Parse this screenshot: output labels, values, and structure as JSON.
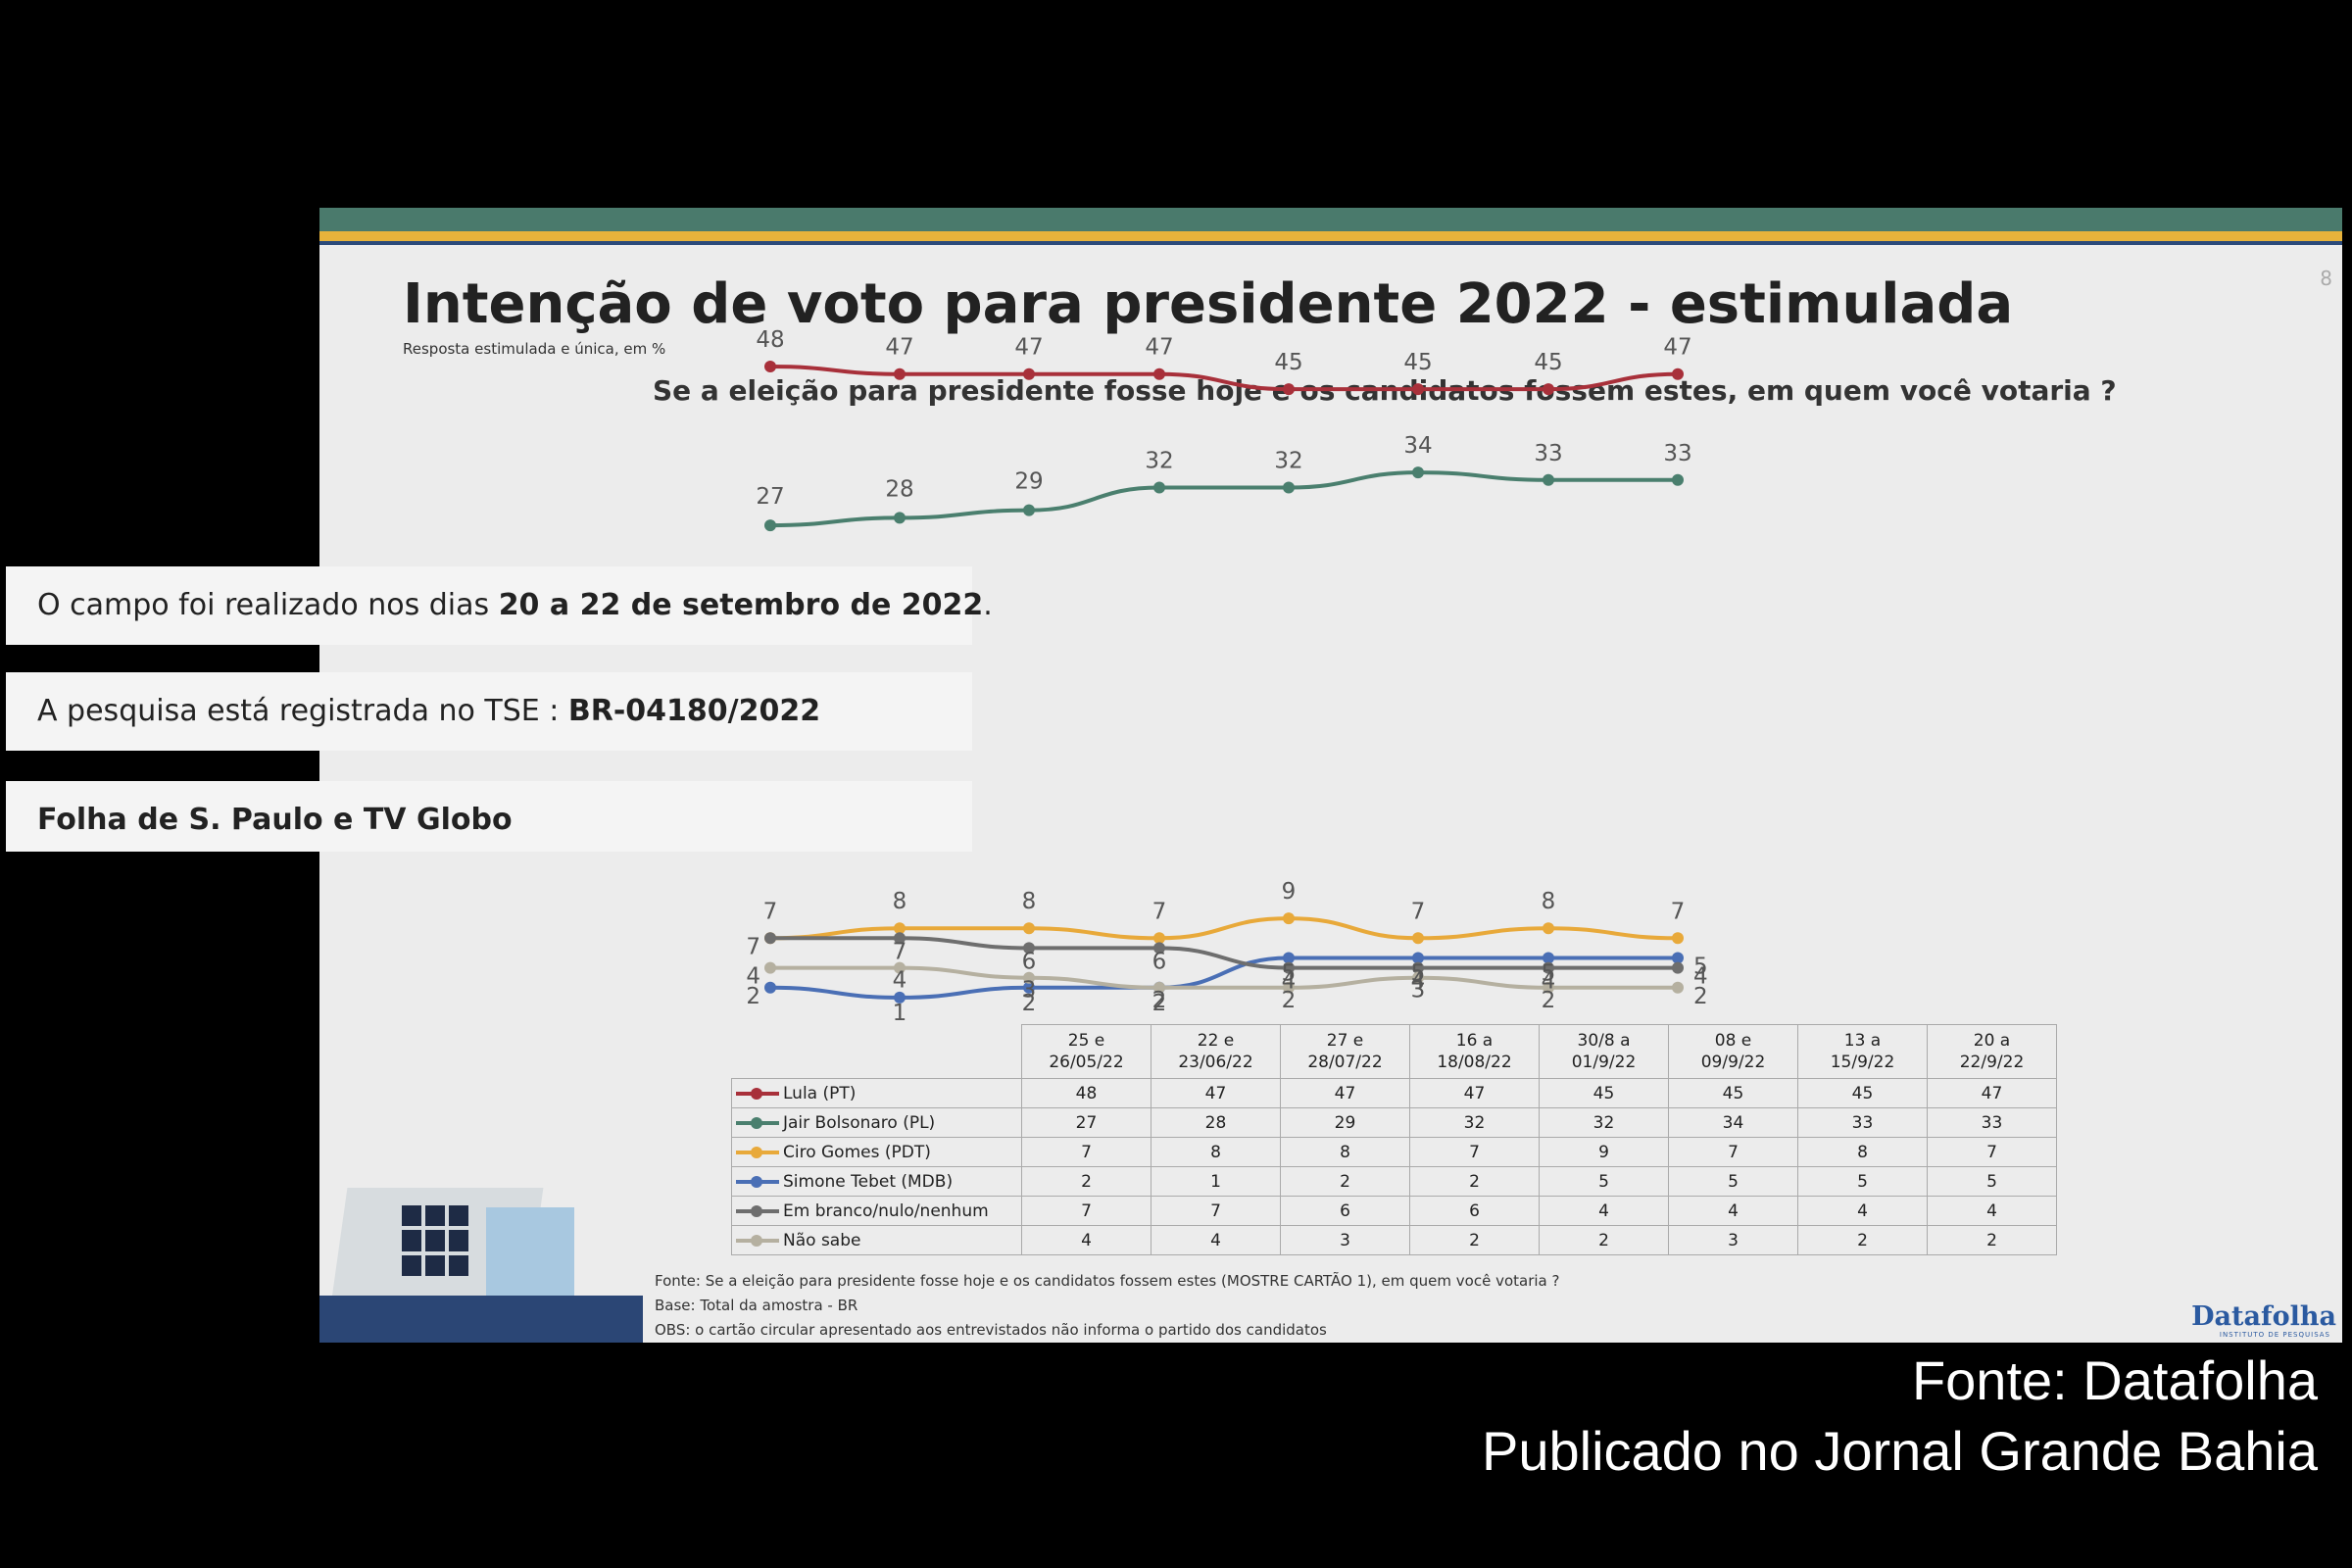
{
  "slide": {
    "page_number": "8",
    "title": "Intenção de voto para presidente 2022 - estimulada",
    "subtitle": "Resposta estimulada e única, em %",
    "question": "Se a eleição para presidente fosse hoje e os candidatos fossem estes, em quem você votaria ?",
    "footnotes": [
      "Fonte: Se a eleição para presidente fosse hoje e os candidatos fossem estes (MOSTRE CARTÃO 1), em quem você votaria ?",
      "Base: Total da amostra - BR",
      "OBS: o cartão circular apresentado aos entrevistados não informa o partido dos candidatos"
    ],
    "logo": "Datafolha",
    "logo_sub": "INSTITUTO DE PESQUISAS"
  },
  "info": {
    "campo_prefix": "O campo foi realizado nos dias ",
    "campo_bold": "20 a 22 de setembro de 2022",
    "campo_suffix": ".",
    "tse_prefix": "A pesquisa está registrada no TSE : ",
    "tse_bold": "BR-04180/2022",
    "contratantes": "Folha de S. Paulo e TV Globo"
  },
  "caption": {
    "line1": "Fonte: Datafolha",
    "line2": "Publicado no Jornal Grande Bahia"
  },
  "chart_data": {
    "type": "line",
    "categories": [
      [
        "25 e",
        "26/05/22"
      ],
      [
        "22 e",
        "23/06/22"
      ],
      [
        "27 e",
        "28/07/22"
      ],
      [
        "16 a",
        "18/08/22"
      ],
      [
        "30/8 a",
        "01/9/22"
      ],
      [
        "08 e",
        "09/9/22"
      ],
      [
        "13 a",
        "15/9/22"
      ],
      [
        "20 a",
        "22/9/22"
      ]
    ],
    "series": [
      {
        "name": "Lula (PT)",
        "color": "#a8303a",
        "values": [
          48,
          47,
          47,
          47,
          45,
          45,
          45,
          47
        ]
      },
      {
        "name": "Jair Bolsonaro (PL)",
        "color": "#4a7f6e",
        "values": [
          27,
          28,
          29,
          32,
          32,
          34,
          33,
          33
        ]
      },
      {
        "name": "Ciro Gomes (PDT)",
        "color": "#e8a93a",
        "values": [
          7,
          8,
          8,
          7,
          9,
          7,
          8,
          7
        ]
      },
      {
        "name": "Simone Tebet (MDB)",
        "color": "#4a6fb5",
        "values": [
          2,
          1,
          2,
          2,
          5,
          5,
          5,
          5
        ]
      },
      {
        "name": "Em branco/nulo/nenhum",
        "color": "#6e6e6e",
        "values": [
          7,
          7,
          6,
          6,
          4,
          4,
          4,
          4
        ]
      },
      {
        "name": "Não sabe",
        "color": "#b5b0a0",
        "values": [
          4,
          4,
          3,
          2,
          2,
          3,
          2,
          2
        ]
      }
    ]
  }
}
